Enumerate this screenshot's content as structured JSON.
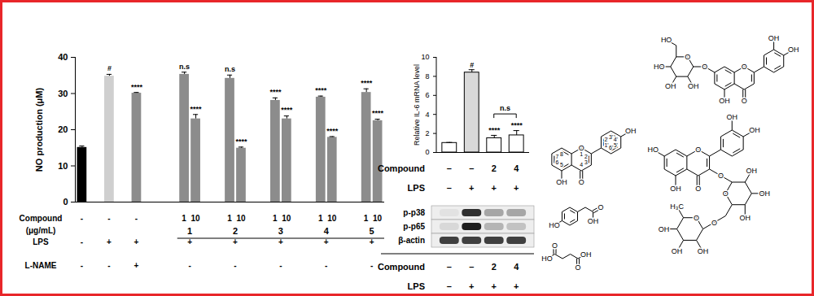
{
  "chart_data": [
    {
      "type": "bar",
      "ylabel": "NO production (μM)",
      "ylim": [
        0,
        40
      ],
      "yticks": [
        0,
        10,
        20,
        30,
        40
      ],
      "grid": false,
      "categories": [
        null,
        null,
        null,
        null,
        null,
        null,
        null,
        null,
        null,
        null,
        null,
        null,
        null
      ],
      "values": [
        15.1,
        34.8,
        30.1,
        35.3,
        23.0,
        34.2,
        14.9,
        28.1,
        23.0,
        29.0,
        17.9,
        30.3,
        22.5
      ],
      "errors": [
        0.4,
        0.5,
        0.2,
        0.6,
        1.2,
        0.9,
        0.3,
        0.7,
        0.8,
        0.3,
        0.2,
        1.0,
        0.4
      ],
      "colors": [
        "#000000",
        "#cfcfcf",
        "#8c8c8c",
        "#8c8c8c",
        "#8c8c8c",
        "#8c8c8c",
        "#8c8c8c",
        "#8c8c8c",
        "#8c8c8c",
        "#8c8c8c",
        "#8c8c8c",
        "#8c8c8c",
        "#8c8c8c"
      ],
      "annotations": [
        null,
        "#",
        "****",
        "n.s",
        "****",
        "n.s",
        "****",
        "****",
        "****",
        "****",
        "****",
        "****",
        "****"
      ],
      "groups": [
        null,
        null,
        null,
        "1",
        "1",
        "2",
        "2",
        "3",
        "3",
        "4",
        "4",
        "5",
        "5"
      ],
      "x_rows": [
        {
          "label": [
            "Compound",
            "(μg/mL)"
          ],
          "values": [
            "-",
            "-",
            "-",
            "1",
            "10",
            "1",
            "10",
            "1",
            "10",
            "1",
            "10",
            "1",
            "10"
          ]
        },
        {
          "label": [
            "LPS"
          ],
          "values": [
            "-",
            "+",
            "+",
            "+",
            null,
            "+",
            null,
            "+",
            null,
            "+",
            null,
            "+",
            null
          ]
        },
        {
          "label": [
            "L-NAME"
          ],
          "values": [
            "-",
            "-",
            "+",
            "-",
            null,
            "-",
            null,
            "-",
            null,
            "-",
            null,
            "-",
            null
          ]
        }
      ]
    },
    {
      "type": "bar",
      "ylabel": "Relative IL-6 mRNA level",
      "ylim": [
        0,
        10
      ],
      "yticks": [
        0,
        2,
        4,
        6,
        8,
        10
      ],
      "grid": false,
      "categories": [
        null,
        null,
        null,
        null
      ],
      "values": [
        1.0,
        8.4,
        1.5,
        1.8
      ],
      "errors": [
        0.05,
        0.3,
        0.3,
        0.5
      ],
      "colors": [
        "#ffffff",
        "#d9d9d9",
        "#ffffff",
        "#ffffff"
      ],
      "annotations": [
        null,
        "#",
        "****",
        "****"
      ],
      "comparisons": [
        {
          "between": [
            2,
            3
          ],
          "label": "n.s"
        }
      ],
      "x_rows": [
        {
          "label": [
            "Compound"
          ],
          "values": [
            "–",
            "–",
            "2",
            "4"
          ]
        },
        {
          "label": [
            "LPS"
          ],
          "values": [
            "–",
            "+",
            "+",
            "+"
          ]
        }
      ],
      "blot": {
        "rows": [
          {
            "label": "p-p38",
            "values": [
              0.2,
              0.85,
              0.45,
              0.45
            ]
          },
          {
            "label": "p-p65",
            "values": [
              0.25,
              0.9,
              0.4,
              0.35
            ]
          },
          {
            "label": "β-actin",
            "values": [
              0.8,
              0.8,
              0.8,
              0.8
            ]
          }
        ],
        "x_rows": [
          {
            "label": [
              "Compound"
            ],
            "values": [
              "–",
              "–",
              "2",
              "4"
            ]
          },
          {
            "label": [
              "LPS"
            ],
            "values": [
              "–",
              "+",
              "+",
              "+"
            ]
          }
        ]
      }
    }
  ],
  "structures": [
    {
      "labels": [
        "HO",
        "HO",
        "OH",
        "OH",
        "O",
        "O",
        "O",
        "O",
        "OH",
        "OH",
        "OH"
      ]
    },
    {
      "labels": [
        "1",
        "2",
        "3",
        "4",
        "5",
        "6",
        "7",
        "8",
        "1'",
        "2'",
        "3'",
        "4'",
        "5'",
        "6'",
        "O",
        "O",
        "OH",
        "OH"
      ]
    },
    {
      "labels": [
        "HO",
        "OH",
        "O"
      ]
    },
    {
      "labels": [
        "HO",
        "O",
        "O",
        "OH"
      ]
    },
    {
      "labels": [
        "HO",
        "OH",
        "O",
        "O",
        "OH",
        "OH",
        "O",
        "O",
        "OH",
        "OH",
        "OH",
        "O",
        "O",
        "H₃C",
        "OH",
        "OH",
        "OH"
      ]
    }
  ]
}
